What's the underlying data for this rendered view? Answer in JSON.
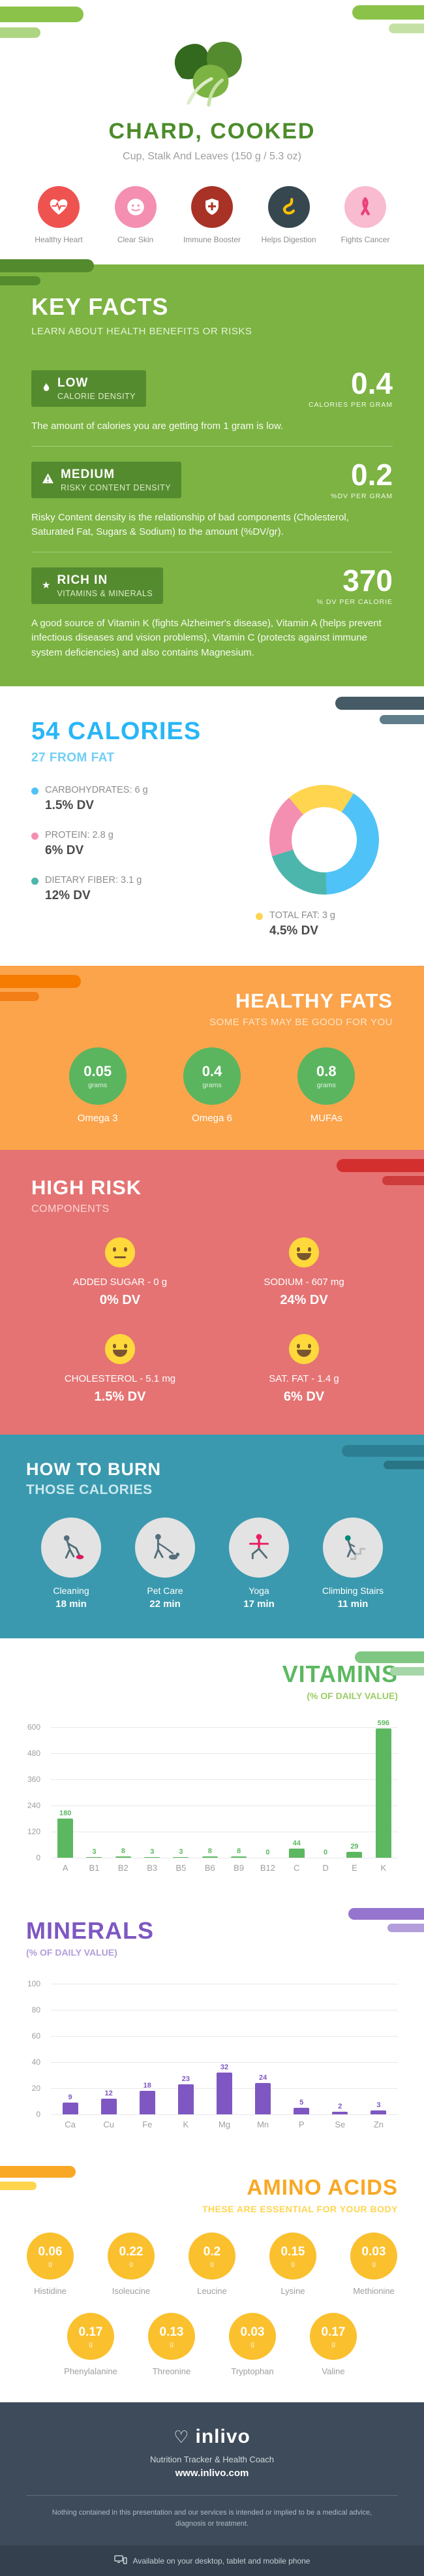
{
  "header": {
    "title": "CHARD, COOKED",
    "subtitle": "Cup, Stalk And Leaves (150 g / 5.3 oz)",
    "benefits": [
      {
        "label": "Healthy Heart",
        "icon": "heart-pulse-icon",
        "color": "#EF5350"
      },
      {
        "label": "Clear Skin",
        "icon": "face-icon",
        "color": "#F48FB1"
      },
      {
        "label": "Immune Booster",
        "icon": "shield-icon",
        "color": "#A93226"
      },
      {
        "label": "Helps Digestion",
        "icon": "stomach-icon",
        "color": "#37474F"
      },
      {
        "label": "Fights Cancer",
        "icon": "ribbon-icon",
        "color": "#F8BBD0"
      }
    ]
  },
  "key_facts": {
    "title": "KEY FACTS",
    "subtitle": "LEARN ABOUT HEALTH BENEFITS OR RISKS",
    "facts": [
      {
        "level": "LOW",
        "name": "CALORIE DENSITY",
        "value": "0.4",
        "unit": "CALORIES PER GRAM",
        "icon": "flame-icon",
        "description": "The amount of calories you are getting from 1 gram is low."
      },
      {
        "level": "MEDIUM",
        "name": "RISKY CONTENT DENSITY",
        "value": "0.2",
        "unit": "%DV PER GRAM",
        "icon": "warning-icon",
        "description": "Risky Content density is the relationship of bad components (Cholesterol, Saturated Fat, Sugars & Sodium) to the amount (%DV/gr)."
      },
      {
        "level": "RICH IN",
        "name": "VITAMINS & MINERALS",
        "value": "370",
        "unit": "% DV PER CALORIE",
        "icon": "sparkle-icon",
        "description": "A good source of Vitamin K (fights Alzheimer's disease), Vitamin A (helps prevent infectious diseases and vision problems), Vitamin C (protects against immune system deficiencies) and also contains Magnesium."
      }
    ]
  },
  "healthy_fats": {
    "title": "HEALTHY FATS",
    "subtitle": "SOME FATS MAY BE GOOD FOR YOU",
    "items": [
      {
        "value": "0.05",
        "unit": "grams",
        "label": "Omega 3"
      },
      {
        "value": "0.4",
        "unit": "grams",
        "label": "Omega 6"
      },
      {
        "value": "0.8",
        "unit": "grams",
        "label": "MUFAs"
      }
    ]
  },
  "high_risk": {
    "title": "HIGH RISK",
    "subtitle": "COMPONENTS",
    "items": [
      {
        "label": "ADDED SUGAR - 0 g",
        "dv": "0% DV",
        "mood": "neutral"
      },
      {
        "label": "SODIUM - 607 mg",
        "dv": "24% DV",
        "mood": "happy"
      },
      {
        "label": "CHOLESTEROL - 5.1 mg",
        "dv": "1.5% DV",
        "mood": "happy"
      },
      {
        "label": "SAT. FAT - 1.4 g",
        "dv": "6% DV",
        "mood": "happy"
      }
    ]
  },
  "burn": {
    "title": "HOW TO BURN",
    "subtitle": "THOSE CALORIES",
    "items": [
      {
        "label": "Cleaning",
        "time": "18 min",
        "icon": "cleaning-icon"
      },
      {
        "label": "Pet Care",
        "time": "22 min",
        "icon": "pet-care-icon"
      },
      {
        "label": "Yoga",
        "time": "17 min",
        "icon": "yoga-icon"
      },
      {
        "label": "Climbing Stairs",
        "time": "11 min",
        "icon": "climbing-stairs-icon"
      }
    ]
  },
  "amino": {
    "title": "AMINO ACIDS",
    "subtitle": "THESE ARE ESSENTIAL FOR YOUR BODY",
    "unit": "g",
    "items": [
      {
        "value": "0.06",
        "label": "Histidine"
      },
      {
        "value": "0.22",
        "label": "Isoleucine"
      },
      {
        "value": "0.2",
        "label": "Leucine"
      },
      {
        "value": "0.15",
        "label": "Lysine"
      },
      {
        "value": "0.03",
        "label": "Methionine"
      },
      {
        "value": "0.17",
        "label": "Phenylalanine"
      },
      {
        "value": "0.13",
        "label": "Threonine"
      },
      {
        "value": "0.03",
        "label": "Tryptophan"
      },
      {
        "value": "0.17",
        "label": "Valine"
      }
    ]
  },
  "footer": {
    "brand": "inlivo",
    "tagline": "Nutrition Tracker & Health Coach",
    "site": "www.inlivo.com",
    "disclaimer": "Nothing contained in this presentation and our services is intended or implied to be a medical advice, diagnosis or treatment.",
    "availability": "Available on your desktop, tablet and mobile phone"
  },
  "palette": {
    "green": "#7CB342",
    "green_dark": "#558B2F",
    "green_title": "#4C8C2B",
    "blue": "#29B6F6",
    "orange": "#FBA44C",
    "red": "#E57373",
    "teal": "#3A99AE",
    "purple": "#7E57C2",
    "amber": "#FBC02D",
    "navy": "#3E4B5A"
  },
  "chart_data": [
    {
      "type": "pie",
      "donut": true,
      "title": "54 CALORIES",
      "subtitle": "27 FROM FAT",
      "labels": [
        "CARBOHYDRATES: 6 g",
        "PROTEIN: 2.8 g",
        "DIETARY FIBER: 3.1 g",
        "TOTAL FAT: 3 g"
      ],
      "dv_labels": [
        "1.5% DV",
        "6% DV",
        "12% DV",
        "4.5% DV"
      ],
      "values_g": [
        6,
        2.8,
        3.1,
        3
      ],
      "colors": [
        "#4FC3F7",
        "#F48FB1",
        "#4DB6AC",
        "#FFD54F"
      ],
      "legend_position": "left"
    },
    {
      "type": "bar",
      "title": "VITAMINS",
      "subtitle": "(% OF DAILY VALUE)",
      "categories": [
        "A",
        "B1",
        "B2",
        "B3",
        "B5",
        "B6",
        "B9",
        "B12",
        "C",
        "D",
        "E",
        "K"
      ],
      "values": [
        180,
        3,
        8,
        3,
        3,
        8,
        8,
        0,
        44,
        0,
        29,
        596
      ],
      "ylim": [
        0,
        600
      ],
      "yticks": [
        0,
        120,
        240,
        360,
        480,
        600
      ],
      "bar_color": "#5CB860",
      "grid": true,
      "xlabel": "",
      "ylabel": "% of daily value"
    },
    {
      "type": "bar",
      "title": "MINERALS",
      "subtitle": "(% OF DAILY VALUE)",
      "categories": [
        "Ca",
        "Cu",
        "Fe",
        "K",
        "Mg",
        "Mn",
        "P",
        "Se",
        "Zn"
      ],
      "values": [
        9,
        12,
        18,
        23,
        32,
        24,
        5,
        2,
        3
      ],
      "ylim": [
        0,
        100
      ],
      "yticks": [
        0,
        20,
        40,
        60,
        80,
        100
      ],
      "bar_color": "#7E57C2",
      "grid": true,
      "xlabel": "",
      "ylabel": "% of daily value"
    }
  ]
}
